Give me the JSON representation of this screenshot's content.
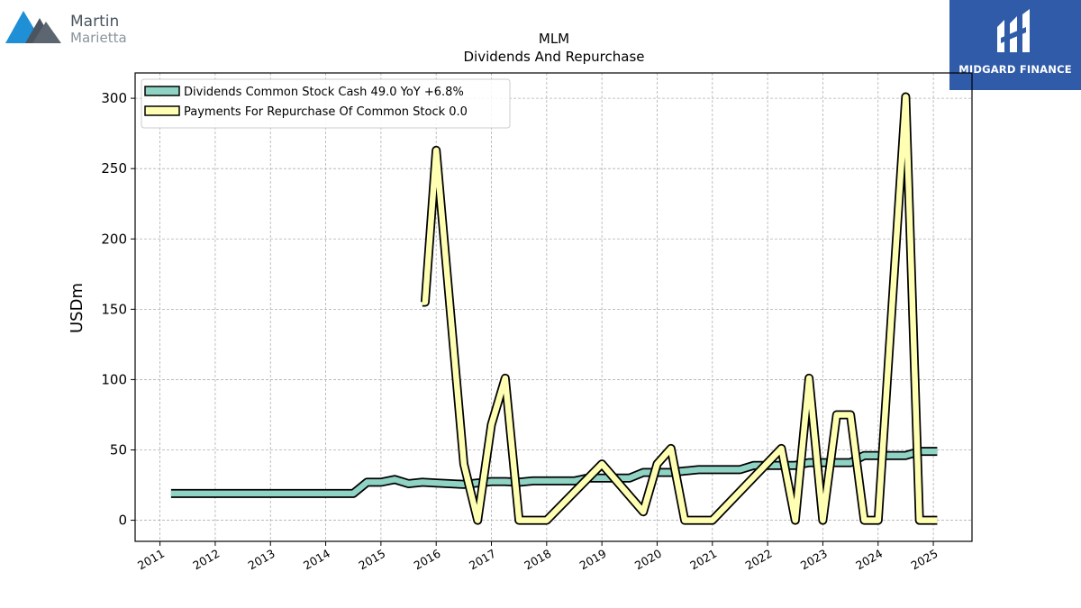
{
  "logos": {
    "left": {
      "line1": "Martin",
      "line2": "Marietta",
      "icon": "mountain-logo-icon"
    },
    "right": {
      "name": "MIDGARD FINANCE",
      "icon": "midgard-monogram-icon",
      "bg": "#2f5ba8"
    }
  },
  "chart_data": {
    "type": "line",
    "title": "MLM",
    "subtitle": "Dividends And Repurchase",
    "ylabel": "USDm",
    "xlabel": "",
    "ylim": [
      -15,
      318
    ],
    "xlim": [
      2010.55,
      2025.7
    ],
    "yticks": [
      0,
      50,
      100,
      150,
      200,
      250,
      300
    ],
    "xticks": [
      "2011",
      "2012",
      "2013",
      "2014",
      "2015",
      "2016",
      "2017",
      "2018",
      "2019",
      "2020",
      "2021",
      "2022",
      "2023",
      "2024",
      "2025"
    ],
    "grid": true,
    "legend_position": "top-left",
    "series": [
      {
        "name": "Dividends Common Stock Cash  49.0 YoY +6.8%",
        "color": "#8fd3c4",
        "points": [
          [
            2011.2,
            19
          ],
          [
            2011.5,
            19
          ],
          [
            2011.75,
            19
          ],
          [
            2012.0,
            19
          ],
          [
            2012.25,
            19
          ],
          [
            2012.5,
            19
          ],
          [
            2012.75,
            19
          ],
          [
            2013.0,
            19
          ],
          [
            2013.25,
            19
          ],
          [
            2013.5,
            19
          ],
          [
            2013.75,
            19
          ],
          [
            2014.0,
            19
          ],
          [
            2014.25,
            19
          ],
          [
            2014.5,
            19
          ],
          [
            2014.75,
            27
          ],
          [
            2015.0,
            27
          ],
          [
            2015.25,
            29
          ],
          [
            2015.5,
            26
          ],
          [
            2015.75,
            27
          ],
          [
            2016.0,
            26.5
          ],
          [
            2016.25,
            26
          ],
          [
            2016.5,
            25.5
          ],
          [
            2016.75,
            26.5
          ],
          [
            2017.0,
            27.5
          ],
          [
            2017.25,
            27.5
          ],
          [
            2017.5,
            27
          ],
          [
            2017.75,
            28
          ],
          [
            2018.0,
            28
          ],
          [
            2018.25,
            28
          ],
          [
            2018.5,
            28
          ],
          [
            2018.75,
            30
          ],
          [
            2019.0,
            30
          ],
          [
            2019.25,
            30
          ],
          [
            2019.5,
            30
          ],
          [
            2019.75,
            34
          ],
          [
            2020.0,
            34
          ],
          [
            2020.25,
            34
          ],
          [
            2020.5,
            35
          ],
          [
            2020.75,
            36
          ],
          [
            2021.0,
            36
          ],
          [
            2021.25,
            36
          ],
          [
            2021.5,
            36
          ],
          [
            2021.75,
            39
          ],
          [
            2022.0,
            39
          ],
          [
            2022.25,
            39
          ],
          [
            2022.5,
            39
          ],
          [
            2022.75,
            41
          ],
          [
            2023.0,
            41
          ],
          [
            2023.25,
            41
          ],
          [
            2023.5,
            41
          ],
          [
            2023.75,
            46
          ],
          [
            2024.0,
            46
          ],
          [
            2024.25,
            46
          ],
          [
            2024.5,
            46
          ],
          [
            2024.75,
            49
          ],
          [
            2025.07,
            49
          ]
        ]
      },
      {
        "name": "Payments For Repurchase Of Common Stock  0.0",
        "color": "#ffffb3",
        "points": [
          [
            2015.75,
            155
          ],
          [
            2015.8,
            155
          ],
          [
            2016.0,
            263
          ],
          [
            2016.5,
            40
          ],
          [
            2016.75,
            0
          ],
          [
            2017.0,
            68
          ],
          [
            2017.25,
            101
          ],
          [
            2017.5,
            0
          ],
          [
            2017.75,
            0
          ],
          [
            2018.0,
            0
          ],
          [
            2019.0,
            40
          ],
          [
            2019.75,
            6
          ],
          [
            2020.0,
            40
          ],
          [
            2020.25,
            51
          ],
          [
            2020.5,
            0
          ],
          [
            2020.75,
            0
          ],
          [
            2021.0,
            0
          ],
          [
            2022.25,
            51
          ],
          [
            2022.5,
            0
          ],
          [
            2022.75,
            101
          ],
          [
            2023.0,
            0
          ],
          [
            2023.25,
            75
          ],
          [
            2023.5,
            75
          ],
          [
            2023.75,
            0
          ],
          [
            2024.0,
            0
          ],
          [
            2024.5,
            301
          ],
          [
            2024.75,
            0
          ],
          [
            2025.07,
            0
          ]
        ]
      }
    ]
  }
}
